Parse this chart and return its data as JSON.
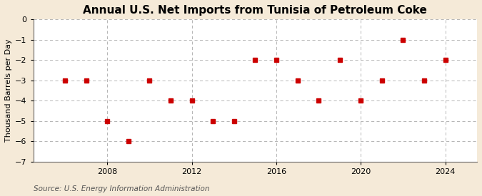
{
  "title": "Annual U.S. Net Imports from Tunisia of Petroleum Coke",
  "ylabel": "Thousand Barrels per Day",
  "source": "Source: U.S. Energy Information Administration",
  "background_color": "#f5ead8",
  "plot_background_color": "#ffffff",
  "years": [
    2006,
    2007,
    2008,
    2009,
    2010,
    2011,
    2012,
    2013,
    2014,
    2015,
    2016,
    2017,
    2018,
    2019,
    2020,
    2021,
    2022,
    2023,
    2024
  ],
  "values": [
    -3,
    -3,
    -5,
    -6,
    -3,
    -4,
    -4,
    -5,
    -5,
    -2,
    -2,
    -3,
    -4,
    -2,
    -4,
    -3,
    -1,
    -3,
    -2
  ],
  "marker_color": "#cc0000",
  "marker_size": 4,
  "ylim": [
    -7,
    0
  ],
  "yticks": [
    0,
    -1,
    -2,
    -3,
    -4,
    -5,
    -6,
    -7
  ],
  "xlim": [
    2004.5,
    2025.5
  ],
  "xticks": [
    2008,
    2012,
    2016,
    2020,
    2024
  ],
  "grid_color": "#aaaaaa",
  "title_fontsize": 11,
  "label_fontsize": 8,
  "tick_fontsize": 8,
  "source_fontsize": 7.5
}
